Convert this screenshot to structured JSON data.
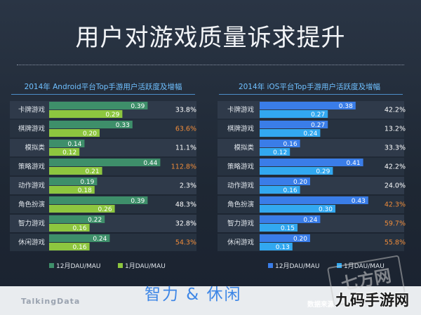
{
  "page": {
    "title": "用户对游戏质量诉求提升",
    "overlay_caption": "智力 & 休闲",
    "source_text": "数据来源",
    "footer_logo": "TalkingData",
    "watermark_logo": "七方网",
    "watermark_text": "九码手游网"
  },
  "colors": {
    "android_dec": "#3e8f6a",
    "android_jan": "#8dc63f",
    "ios_dec": "#3a7de8",
    "ios_jan": "#32a8f0",
    "highlight_text": "#f08c3a",
    "normal_text": "#ffffff"
  },
  "chart_data": [
    {
      "type": "bar",
      "title": "2014年 Android平台Top手游用户活跃度及增幅",
      "categories": [
        "卡牌游戏",
        "棋牌游戏",
        "模拟类",
        "策略游戏",
        "动作游戏",
        "角色扮演",
        "智力游戏",
        "休闲游戏"
      ],
      "series": [
        {
          "name": "12月DAU/MAU",
          "values": [
            0.39,
            0.33,
            0.14,
            0.44,
            0.19,
            0.39,
            0.22,
            0.24
          ]
        },
        {
          "name": "1月DAU/MAU",
          "values": [
            0.29,
            0.2,
            0.12,
            0.21,
            0.18,
            0.26,
            0.16,
            0.16
          ]
        }
      ],
      "value_labels": {
        "dec": [
          "0.39",
          "0.33",
          "0.14",
          "0.44",
          "0.19",
          "0.39",
          "0.22",
          "0.24"
        ],
        "jan": [
          "0.29",
          "0.20",
          "0.12",
          "0.21",
          "0.18",
          "0.26",
          "0.16",
          "0.16"
        ]
      },
      "growth": [
        "33.8%",
        "63.6%",
        "11.1%",
        "112.8%",
        "2.3%",
        "48.3%",
        "32.8%",
        "54.3%"
      ],
      "growth_highlight": [
        false,
        true,
        false,
        true,
        false,
        false,
        false,
        true
      ],
      "legend": [
        "12月DAU/MAU",
        "1月DAU/MAU"
      ],
      "legend_position": "bottom",
      "xlim": [
        0,
        0.5
      ]
    },
    {
      "type": "bar",
      "title": "2014年 iOS平台Top手游用户活跃度及增幅",
      "categories": [
        "卡牌游戏",
        "棋牌游戏",
        "模拟类",
        "策略游戏",
        "动作游戏",
        "角色扮演",
        "智力游戏",
        "休闲游戏"
      ],
      "series": [
        {
          "name": "12月DAU/MAU",
          "values": [
            0.38,
            0.27,
            0.16,
            0.41,
            0.2,
            0.43,
            0.24,
            0.2
          ]
        },
        {
          "name": "1月DAU/MAU",
          "values": [
            0.27,
            0.24,
            0.12,
            0.29,
            0.16,
            0.3,
            0.15,
            0.13
          ]
        }
      ],
      "value_labels": {
        "dec": [
          "0.38",
          "0.27",
          "0.16",
          "0.41",
          "0.20",
          "0.43",
          "0.24",
          "0.20"
        ],
        "jan": [
          "0.27",
          "0.24",
          "0.12",
          "0.29",
          "0.16",
          "0.30",
          "0.15",
          "0.13"
        ]
      },
      "growth": [
        "42.2%",
        "13.2%",
        "33.3%",
        "42.2%",
        "24.0%",
        "42.3%",
        "59.7%",
        "55.8%"
      ],
      "growth_highlight": [
        false,
        false,
        false,
        false,
        false,
        true,
        true,
        true
      ],
      "legend": [
        "12月DAU/MAU",
        "1月DAU/MAU"
      ],
      "legend_position": "bottom",
      "xlim": [
        0,
        0.5
      ]
    }
  ]
}
